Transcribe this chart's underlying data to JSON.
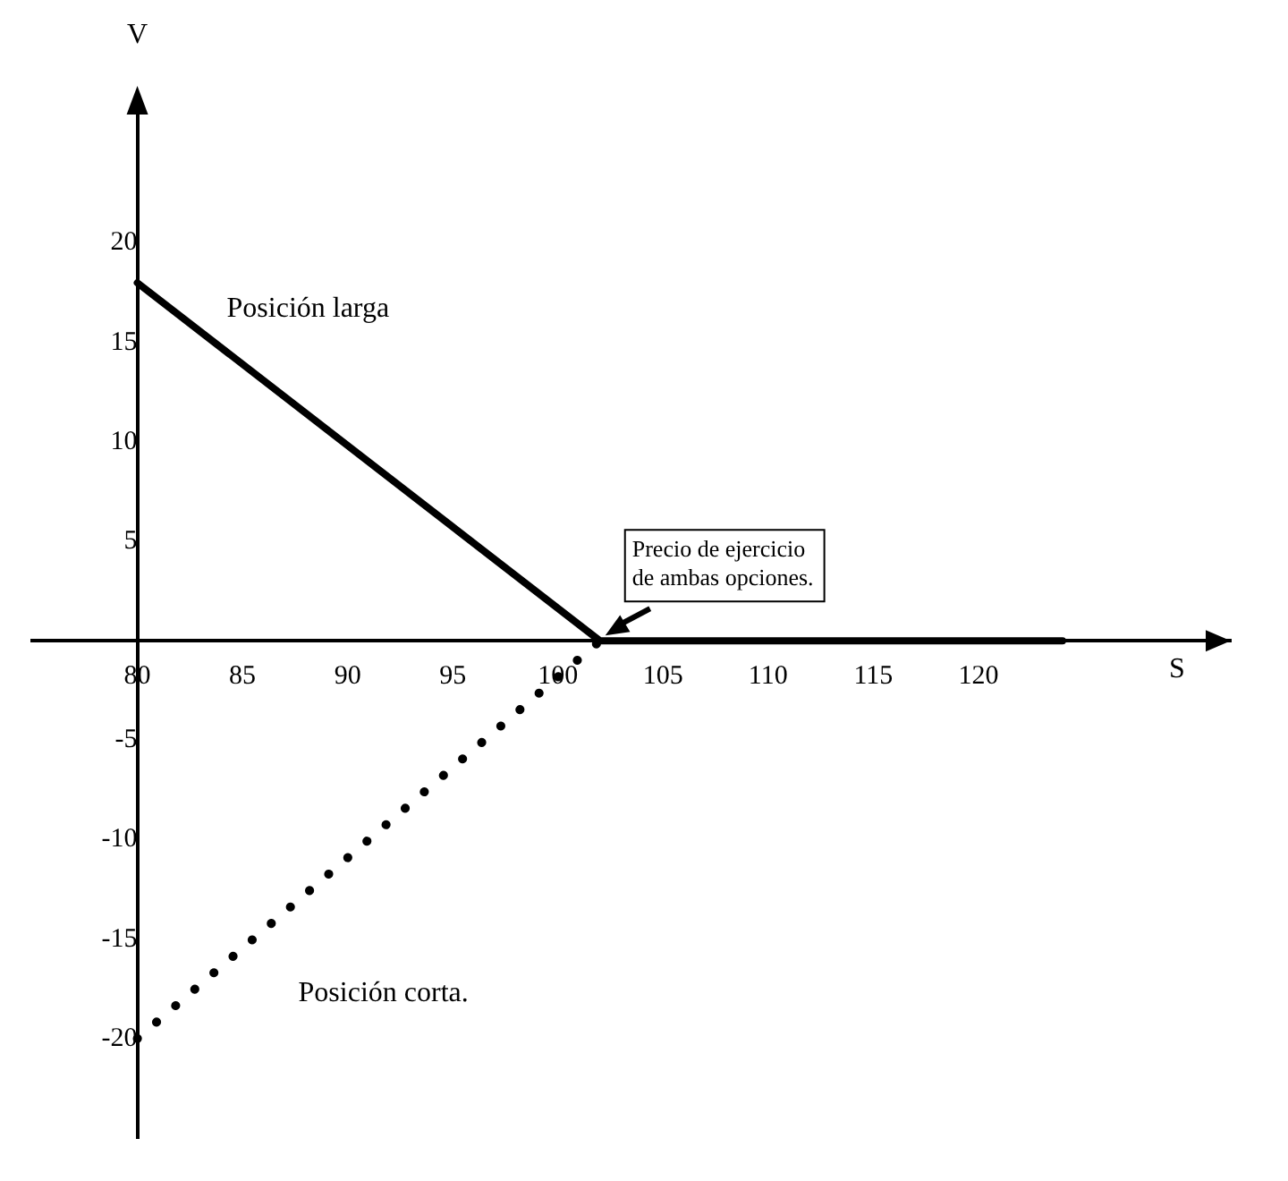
{
  "chart_data": {
    "type": "line",
    "xlabel": "S",
    "ylabel": "V",
    "x": [
      80,
      102,
      124
    ],
    "series": [
      {
        "name": "Posición larga",
        "color": "#000000",
        "values": [
          18,
          0,
          0
        ],
        "line_style": "solid"
      },
      {
        "name": "Posición corta.",
        "color": "#000000",
        "x": [
          80,
          102
        ],
        "values": [
          -20,
          0
        ],
        "line_style": "dotted"
      }
    ],
    "xlim": [
      75,
      132
    ],
    "xticks": [
      80,
      85,
      90,
      95,
      100,
      105,
      110,
      115,
      120
    ],
    "ylim": [
      -25,
      27
    ],
    "yticks": [
      -20,
      -15,
      -10,
      -5,
      5,
      10,
      15,
      20
    ],
    "annotations": [
      {
        "text": "Precio de ejercicio de ambas opciones.",
        "x": 102,
        "y": 0
      }
    ],
    "grid": false,
    "legend": false,
    "marker": "none"
  }
}
